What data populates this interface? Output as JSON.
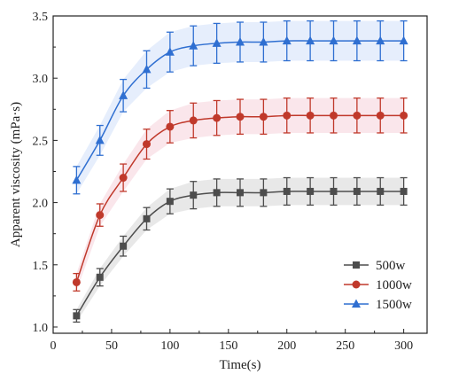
{
  "chart_data": {
    "type": "line",
    "title": "",
    "xlabel": "Time(s)",
    "ylabel": "Apparent viscosity (mPa·s)",
    "xlim": [
      0,
      320
    ],
    "ylim": [
      0.95,
      3.5
    ],
    "xticks": [
      0,
      50,
      100,
      150,
      200,
      250,
      300
    ],
    "yticks": [
      1.0,
      1.5,
      2.0,
      2.5,
      3.0,
      3.5
    ],
    "grid": false,
    "legend_position": "bottom-right",
    "x": [
      20,
      40,
      60,
      80,
      100,
      120,
      140,
      160,
      180,
      200,
      220,
      240,
      260,
      280,
      300
    ],
    "series": [
      {
        "name": "500w",
        "marker": "square",
        "color": "#4d4d4d",
        "band_color": "#bdbdbd",
        "values": [
          1.09,
          1.4,
          1.65,
          1.87,
          2.01,
          2.06,
          2.08,
          2.08,
          2.08,
          2.09,
          2.09,
          2.09,
          2.09,
          2.09,
          2.09
        ],
        "errors": [
          0.05,
          0.07,
          0.08,
          0.09,
          0.1,
          0.11,
          0.11,
          0.11,
          0.11,
          0.11,
          0.11,
          0.11,
          0.11,
          0.11,
          0.11
        ]
      },
      {
        "name": "1000w",
        "marker": "circle",
        "color": "#c0392b",
        "band_color": "#f2b8c6",
        "values": [
          1.36,
          1.9,
          2.2,
          2.47,
          2.61,
          2.66,
          2.68,
          2.69,
          2.69,
          2.7,
          2.7,
          2.7,
          2.7,
          2.7,
          2.7
        ],
        "errors": [
          0.07,
          0.09,
          0.11,
          0.12,
          0.13,
          0.14,
          0.14,
          0.14,
          0.14,
          0.14,
          0.14,
          0.14,
          0.14,
          0.14,
          0.14
        ]
      },
      {
        "name": "1500w",
        "marker": "triangle",
        "color": "#2f6fd1",
        "band_color": "#b7cff5",
        "values": [
          2.18,
          2.5,
          2.86,
          3.07,
          3.21,
          3.26,
          3.28,
          3.29,
          3.29,
          3.3,
          3.3,
          3.3,
          3.3,
          3.3,
          3.3
        ],
        "errors": [
          0.11,
          0.12,
          0.13,
          0.15,
          0.16,
          0.16,
          0.16,
          0.16,
          0.16,
          0.16,
          0.16,
          0.16,
          0.16,
          0.16,
          0.16
        ]
      }
    ]
  }
}
